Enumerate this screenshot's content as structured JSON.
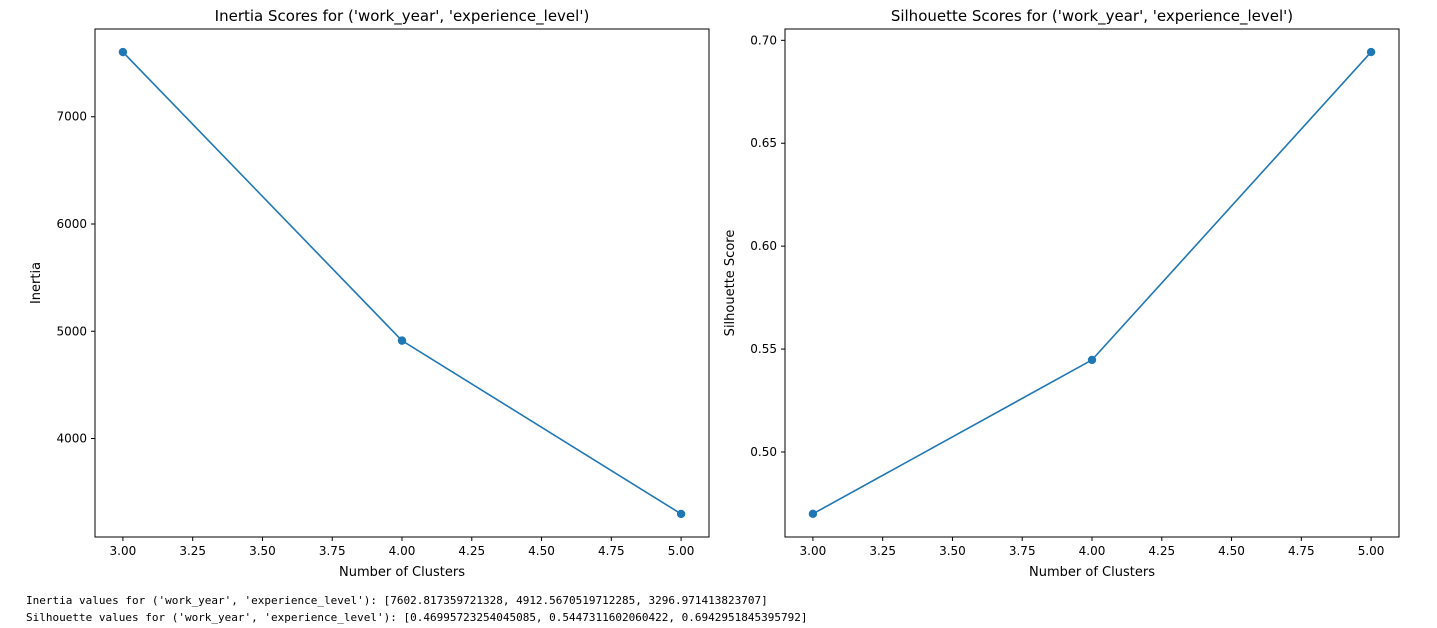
{
  "chart_data": [
    {
      "type": "line",
      "title": "Inertia Scores for ('work_year', 'experience_level')",
      "xlabel": "Number of Clusters",
      "ylabel": "Inertia",
      "x": [
        3,
        4,
        5
      ],
      "series": [
        {
          "values": [
            7602.817359721328,
            4912.5670519712285,
            3296.971413823707
          ]
        }
      ],
      "xticks": [
        "3.00",
        "3.25",
        "3.50",
        "3.75",
        "4.00",
        "4.25",
        "4.50",
        "4.75",
        "5.00"
      ],
      "yticks": [
        "4000",
        "5000",
        "6000",
        "7000"
      ],
      "xlim": [
        2.9,
        5.1
      ],
      "ylim": [
        3081.7,
        7818.1
      ],
      "grid": false,
      "color": "#1f77b4"
    },
    {
      "type": "line",
      "title": "Silhouette Scores for ('work_year', 'experience_level')",
      "xlabel": "Number of Clusters",
      "ylabel": "Silhouette Score",
      "x": [
        3,
        4,
        5
      ],
      "series": [
        {
          "values": [
            0.46995723254045085,
            0.5447311602060422,
            0.6942951845395792
          ]
        }
      ],
      "xticks": [
        "3.00",
        "3.25",
        "3.50",
        "3.75",
        "4.00",
        "4.25",
        "4.50",
        "4.75",
        "5.00"
      ],
      "yticks": [
        "0.50",
        "0.55",
        "0.60",
        "0.65",
        "0.70"
      ],
      "xlim": [
        2.9,
        5.1
      ],
      "ylim": [
        0.4587,
        0.7055
      ],
      "grid": false,
      "color": "#1f77b4"
    }
  ],
  "output": {
    "inertia_line": "Inertia values for ('work_year', 'experience_level'): [7602.817359721328, 4912.5670519712285, 3296.971413823707]",
    "silhouette_line": "Silhouette values for ('work_year', 'experience_level'): [0.46995723254045085, 0.5447311602060422, 0.6942951845395792]"
  }
}
